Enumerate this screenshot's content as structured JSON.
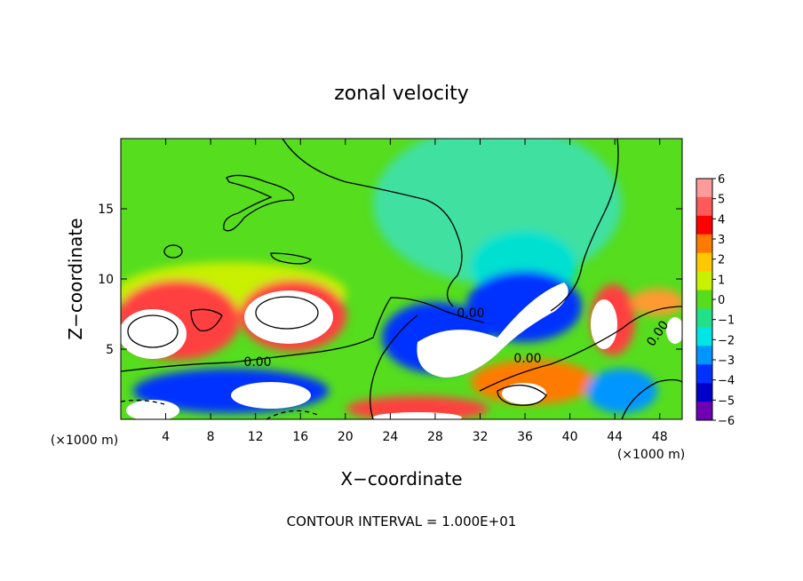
{
  "chart_data": {
    "type": "heatmap",
    "title": "zonal velocity",
    "xlabel": "X−coordinate",
    "ylabel": "Z−coordinate",
    "x_unit_label": "(×1000 m)",
    "x_unit_label_right": "(×1000 m)",
    "xlim": [
      0,
      50
    ],
    "ylim": [
      0,
      20
    ],
    "x_ticks": [
      4,
      8,
      12,
      16,
      20,
      24,
      28,
      32,
      36,
      40,
      44,
      48
    ],
    "y_ticks": [
      5,
      10,
      15
    ],
    "colorbar": {
      "ticks": [
        6,
        5,
        4,
        3,
        2,
        1,
        0,
        -1,
        -2,
        -3,
        -4,
        -5,
        -6
      ],
      "colors": [
        "#ff9a9a",
        "#ff5a5a",
        "#ff0000",
        "#ff7a00",
        "#ffc800",
        "#c8f000",
        "#55dd1e",
        "#22e08a",
        "#00e6e6",
        "#0096ff",
        "#0032ff",
        "#0000c8",
        "#6e00b4"
      ]
    },
    "contour_labels": [
      "0.00",
      "0.00",
      "0.00",
      "0.00"
    ],
    "footer": "CONTOUR INTERVAL = 1.000E+01"
  }
}
